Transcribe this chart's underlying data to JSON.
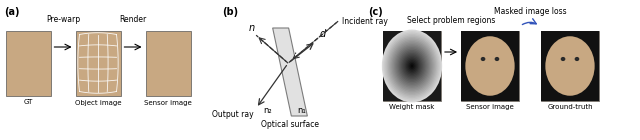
{
  "fig_width": 6.4,
  "fig_height": 1.4,
  "dpi": 100,
  "bg_color": "#ffffff",
  "panel_a_label": "(a)",
  "panel_b_label": "(b)",
  "panel_c_label": "(c)",
  "panel_a_texts": [
    "Pre-warp",
    "Render",
    "GT",
    "Object image",
    "Sensor image"
  ],
  "panel_b_texts": [
    "n",
    "d",
    "Incident ray",
    "Output ray",
    "n₂",
    "n₁",
    "Optical surface"
  ],
  "panel_c_texts": [
    "Select problem regions",
    "Masked image loss",
    "Weight mask",
    "Sensor image",
    "Ground-truth"
  ]
}
